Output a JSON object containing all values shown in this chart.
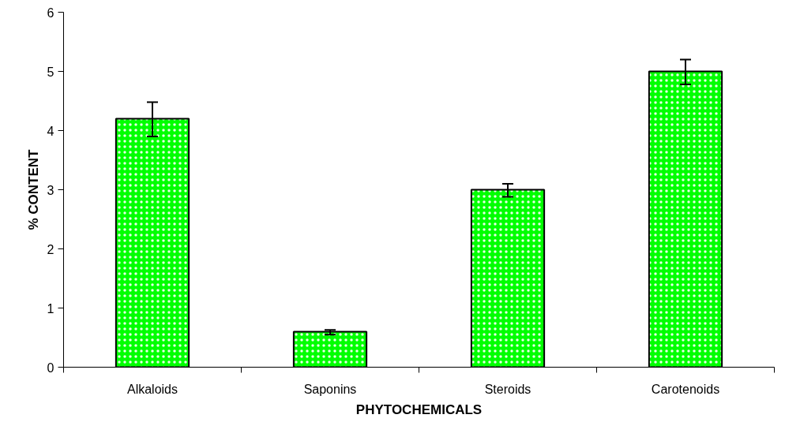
{
  "chart_data": {
    "type": "bar",
    "xlabel": "PHYTOCHEMICALS",
    "ylabel": "% CONTENT",
    "categories": [
      "Alkaloids",
      "Saponins",
      "Steroids",
      "Carotenoids"
    ],
    "values": [
      4.2,
      0.6,
      3.0,
      5.0
    ],
    "errors": [
      [
        3.9,
        4.48
      ],
      [
        0.55,
        0.63
      ],
      [
        2.88,
        3.1
      ],
      [
        4.78,
        5.2
      ]
    ],
    "color": "#00ff00",
    "ylim": [
      0,
      6
    ],
    "yticks": [
      0,
      1,
      2,
      3,
      4,
      5,
      6
    ],
    "grid": false
  }
}
